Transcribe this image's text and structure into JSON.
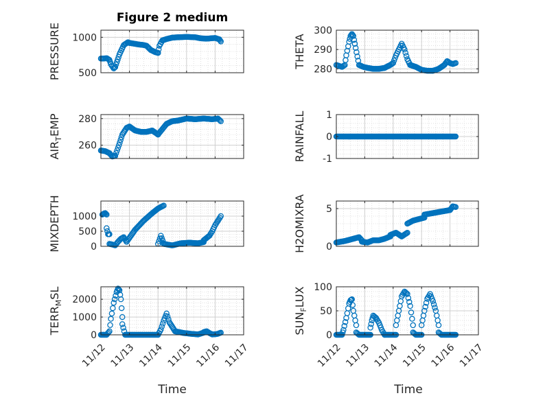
{
  "figure_title": "Figure 2 medium",
  "marker_color": "#0072bd",
  "x_tick_labels": [
    "11/12",
    "11/13",
    "11/14",
    "11/15",
    "11/16",
    "11/17"
  ],
  "xlabel": "Time",
  "chart_data": [
    {
      "type": "scatter",
      "title": "Figure 2 medium",
      "ylabel": "PRESSURE",
      "ylabel_parts": {
        "main": "PRESSURE"
      },
      "xlim": [
        0,
        5
      ],
      "ylim": [
        500,
        1100
      ],
      "yticks": [
        500,
        1000
      ],
      "ytick_labels": [
        "500",
        "1000"
      ],
      "grid": true,
      "segments": [
        {
          "x": [
            0,
            0.1,
            0.2,
            0.3,
            0.35,
            0.45,
            0.5
          ],
          "y": [
            700,
            700,
            705,
            680,
            620,
            560,
            580
          ]
        },
        {
          "x": [
            0.5,
            0.65,
            0.8,
            0.95,
            1.0
          ],
          "y": [
            580,
            760,
            890,
            930,
            920
          ]
        },
        {
          "x": [
            1.0,
            1.3,
            1.5,
            1.6,
            1.75,
            1.9,
            2.0
          ],
          "y": [
            920,
            900,
            890,
            880,
            820,
            790,
            780
          ]
        },
        {
          "x": [
            2.0,
            2.05,
            2.15,
            2.3,
            2.5,
            2.7
          ],
          "y": [
            780,
            880,
            955,
            975,
            995,
            1000
          ]
        },
        {
          "x": [
            2.7,
            3.0,
            3.3,
            3.5,
            3.7,
            4.0,
            4.15,
            4.2
          ],
          "y": [
            1000,
            1005,
            1000,
            985,
            980,
            990,
            970,
            940
          ]
        }
      ]
    },
    {
      "type": "scatter",
      "ylabel": "THETA",
      "ylabel_parts": {
        "main": "THETA"
      },
      "xlim": [
        0,
        5
      ],
      "ylim": [
        278,
        300
      ],
      "yticks": [
        280,
        290,
        300
      ],
      "ytick_labels": [
        "280",
        "290",
        "300"
      ],
      "grid": true,
      "segments": [
        {
          "x": [
            0,
            0.1,
            0.2,
            0.3,
            0.35,
            0.45,
            0.5,
            0.55,
            0.6,
            0.65
          ],
          "y": [
            282,
            281.5,
            281,
            282,
            287,
            294,
            297,
            298,
            297,
            293
          ]
        },
        {
          "x": [
            0.65,
            0.8,
            0.95,
            1.1,
            1.3,
            1.5,
            1.7
          ],
          "y": [
            293,
            282,
            281,
            280.5,
            280,
            280,
            280.5
          ]
        },
        {
          "x": [
            1.7,
            1.9,
            2.0,
            2.1,
            2.2,
            2.3,
            2.4,
            2.5,
            2.6
          ],
          "y": [
            280.5,
            282,
            283,
            287,
            290,
            293,
            290,
            285,
            282
          ]
        },
        {
          "x": [
            2.6,
            2.8,
            3.0,
            3.2,
            3.4
          ],
          "y": [
            282,
            281,
            279.5,
            279,
            279
          ]
        },
        {
          "x": [
            3.4,
            3.6,
            3.8,
            3.9,
            4.0,
            4.1,
            4.2
          ],
          "y": [
            279,
            280,
            282,
            284,
            283,
            282.5,
            283
          ]
        }
      ]
    },
    {
      "type": "scatter",
      "ylabel": "AIR_TEMP",
      "ylabel_parts": {
        "main": "AIR",
        "sub": "T",
        "rest": "EMP"
      },
      "xlim": [
        0,
        5
      ],
      "ylim": [
        250,
        283
      ],
      "yticks": [
        260,
        280
      ],
      "ytick_labels": [
        "260",
        "280"
      ],
      "grid": true,
      "segments": [
        {
          "x": [
            0,
            0.15,
            0.3,
            0.4,
            0.5
          ],
          "y": [
            256,
            255.5,
            254,
            251.5,
            252
          ]
        },
        {
          "x": [
            0.5,
            0.6,
            0.75,
            0.9,
            1.0
          ],
          "y": [
            252,
            258,
            268,
            273,
            274
          ]
        },
        {
          "x": [
            1.0,
            1.2,
            1.4,
            1.6,
            1.8,
            2.0
          ],
          "y": [
            274,
            271,
            270,
            270,
            271,
            268
          ]
        },
        {
          "x": [
            2.0,
            2.15,
            2.3,
            2.5,
            2.7
          ],
          "y": [
            268,
            272,
            276,
            278,
            278.5
          ]
        },
        {
          "x": [
            2.7,
            3.0,
            3.3,
            3.6,
            3.9,
            4.1,
            4.2
          ],
          "y": [
            278.5,
            280,
            279.5,
            280,
            279.5,
            280,
            278
          ]
        }
      ]
    },
    {
      "type": "scatter",
      "ylabel": "RAINFALL",
      "ylabel_parts": {
        "main": "RAINFALL"
      },
      "xlim": [
        0,
        5
      ],
      "ylim": [
        -1,
        1
      ],
      "yticks": [
        -1,
        0,
        1
      ],
      "ytick_labels": [
        "-1",
        "0",
        "1"
      ],
      "grid": true,
      "segments": [
        {
          "x": [
            0,
            4.2
          ],
          "y": [
            0,
            0
          ]
        }
      ]
    },
    {
      "type": "scatter",
      "ylabel": "MIXDEPTH",
      "ylabel_parts": {
        "main": "MIXDEPTH"
      },
      "xlim": [
        0,
        5
      ],
      "ylim": [
        0,
        1500
      ],
      "yticks": [
        0,
        500,
        1000
      ],
      "ytick_labels": [
        "0",
        "500",
        "1000"
      ],
      "grid": true,
      "segments": [
        {
          "x": [
            0.05,
            0.1,
            0.15,
            0.2
          ],
          "y": [
            1050,
            1080,
            1100,
            1050
          ]
        },
        {
          "x": [
            0.2,
            0.25,
            0.3
          ],
          "y": [
            600,
            400,
            400
          ]
        },
        {
          "x": [
            0.3,
            0.4,
            0.5,
            0.6,
            0.7,
            0.8,
            0.9
          ],
          "y": [
            80,
            60,
            30,
            150,
            250,
            300,
            150
          ]
        },
        {
          "x": [
            0.9,
            1.2,
            1.5,
            1.8,
            2.0,
            2.1,
            2.2
          ],
          "y": [
            150,
            550,
            850,
            1100,
            1250,
            1300,
            1350
          ]
        },
        {
          "x": [
            2.0,
            2.1,
            2.2
          ],
          "y": [
            80,
            350,
            100
          ]
        },
        {
          "x": [
            2.2,
            2.5,
            2.8,
            3.1,
            3.4,
            3.6
          ],
          "y": [
            80,
            30,
            100,
            120,
            100,
            140
          ]
        },
        {
          "x": [
            3.6,
            3.8,
            3.9,
            4.0,
            4.1,
            4.2
          ],
          "y": [
            200,
            350,
            500,
            700,
            850,
            1000
          ]
        }
      ]
    },
    {
      "type": "scatter",
      "ylabel": "H2OMIXRA",
      "ylabel_parts": {
        "main": "H2OMIXRA"
      },
      "xlim": [
        0,
        5
      ],
      "ylim": [
        0,
        6
      ],
      "yticks": [
        0,
        5
      ],
      "ytick_labels": [
        "0",
        "5"
      ],
      "grid": true,
      "segments": [
        {
          "x": [
            0,
            0.3,
            0.6,
            0.8,
            0.9
          ],
          "y": [
            0.5,
            0.7,
            1.0,
            1.2,
            0.8
          ]
        },
        {
          "x": [
            0.9,
            1.1,
            1.3,
            1.5,
            1.7,
            1.9
          ],
          "y": [
            0.6,
            0.5,
            0.8,
            0.8,
            1.0,
            1.3
          ]
        },
        {
          "x": [
            1.9,
            2.1,
            2.3,
            2.5
          ],
          "y": [
            1.5,
            1.8,
            1.3,
            1.8
          ]
        },
        {
          "x": [
            2.5,
            2.7,
            2.9,
            3.1
          ],
          "y": [
            3.0,
            3.4,
            3.6,
            3.8
          ]
        },
        {
          "x": [
            3.1,
            3.4,
            3.7,
            4.0,
            4.1,
            4.2
          ],
          "y": [
            4.2,
            4.4,
            4.6,
            4.8,
            5.3,
            5.2
          ]
        }
      ]
    },
    {
      "type": "scatter",
      "ylabel": "TERR_MSL",
      "ylabel_parts": {
        "main": "TERR",
        "sub": "M",
        "rest": "SL"
      },
      "xlim": [
        0,
        5
      ],
      "ylim": [
        0,
        2700
      ],
      "yticks": [
        0,
        1000,
        2000
      ],
      "ytick_labels": [
        "0",
        "1000",
        "2000"
      ],
      "grid": true,
      "segments": [
        {
          "x": [
            0,
            0.2,
            0.3,
            0.35,
            0.45,
            0.55,
            0.6,
            0.65,
            0.7,
            0.75
          ],
          "y": [
            0,
            0,
            200,
            900,
            1800,
            2400,
            2600,
            2500,
            2000,
            1000
          ]
        },
        {
          "x": [
            0.75,
            0.85,
            1.0,
            1.3,
            1.6,
            1.9,
            2.0
          ],
          "y": [
            600,
            0,
            0,
            0,
            0,
            0,
            0
          ]
        },
        {
          "x": [
            2.0,
            2.1,
            2.2,
            2.3,
            2.4,
            2.6
          ],
          "y": [
            0,
            300,
            800,
            1200,
            700,
            200
          ]
        },
        {
          "x": [
            2.6,
            2.9,
            3.2,
            3.4,
            3.6
          ],
          "y": [
            200,
            100,
            50,
            20,
            120
          ]
        },
        {
          "x": [
            3.6,
            3.7,
            3.8,
            3.9,
            4.0,
            4.1,
            4.2
          ],
          "y": [
            150,
            200,
            100,
            20,
            30,
            60,
            120
          ]
        }
      ]
    },
    {
      "type": "scatter",
      "ylabel": "SUN_FLUX",
      "ylabel_parts": {
        "main": "SUN",
        "sub": "F",
        "rest": "LUX"
      },
      "xlim": [
        0,
        5
      ],
      "ylim": [
        0,
        100
      ],
      "yticks": [
        0,
        50,
        100
      ],
      "ytick_labels": [
        "0",
        "50",
        "100"
      ],
      "grid": true,
      "segments": [
        {
          "x": [
            0,
            0.2,
            0.25,
            0.35,
            0.45,
            0.5,
            0.55,
            0.6,
            0.7
          ],
          "y": [
            0,
            0,
            10,
            35,
            65,
            72,
            74,
            50,
            20
          ]
        },
        {
          "x": [
            0.7,
            0.8,
            1.0,
            1.2
          ],
          "y": [
            5,
            0,
            0,
            0
          ]
        },
        {
          "x": [
            1.2,
            1.25,
            1.3,
            1.4,
            1.5,
            1.6,
            1.7
          ],
          "y": [
            15,
            30,
            40,
            35,
            25,
            10,
            0
          ]
        },
        {
          "x": [
            1.7,
            1.9,
            2.0,
            2.1
          ],
          "y": [
            0,
            0,
            0,
            0
          ]
        },
        {
          "x": [
            2.1,
            2.2,
            2.3,
            2.4,
            2.5,
            2.6,
            2.7
          ],
          "y": [
            20,
            50,
            80,
            90,
            85,
            60,
            20
          ]
        },
        {
          "x": [
            2.7,
            2.8,
            2.9,
            3.0
          ],
          "y": [
            5,
            0,
            0,
            0
          ]
        },
        {
          "x": [
            3.0,
            3.1,
            3.2,
            3.3,
            3.4,
            3.5,
            3.6
          ],
          "y": [
            20,
            50,
            75,
            85,
            70,
            50,
            20
          ]
        },
        {
          "x": [
            3.6,
            3.7,
            3.8,
            4.0,
            4.2
          ],
          "y": [
            5,
            0,
            0,
            0,
            0
          ]
        }
      ]
    }
  ]
}
